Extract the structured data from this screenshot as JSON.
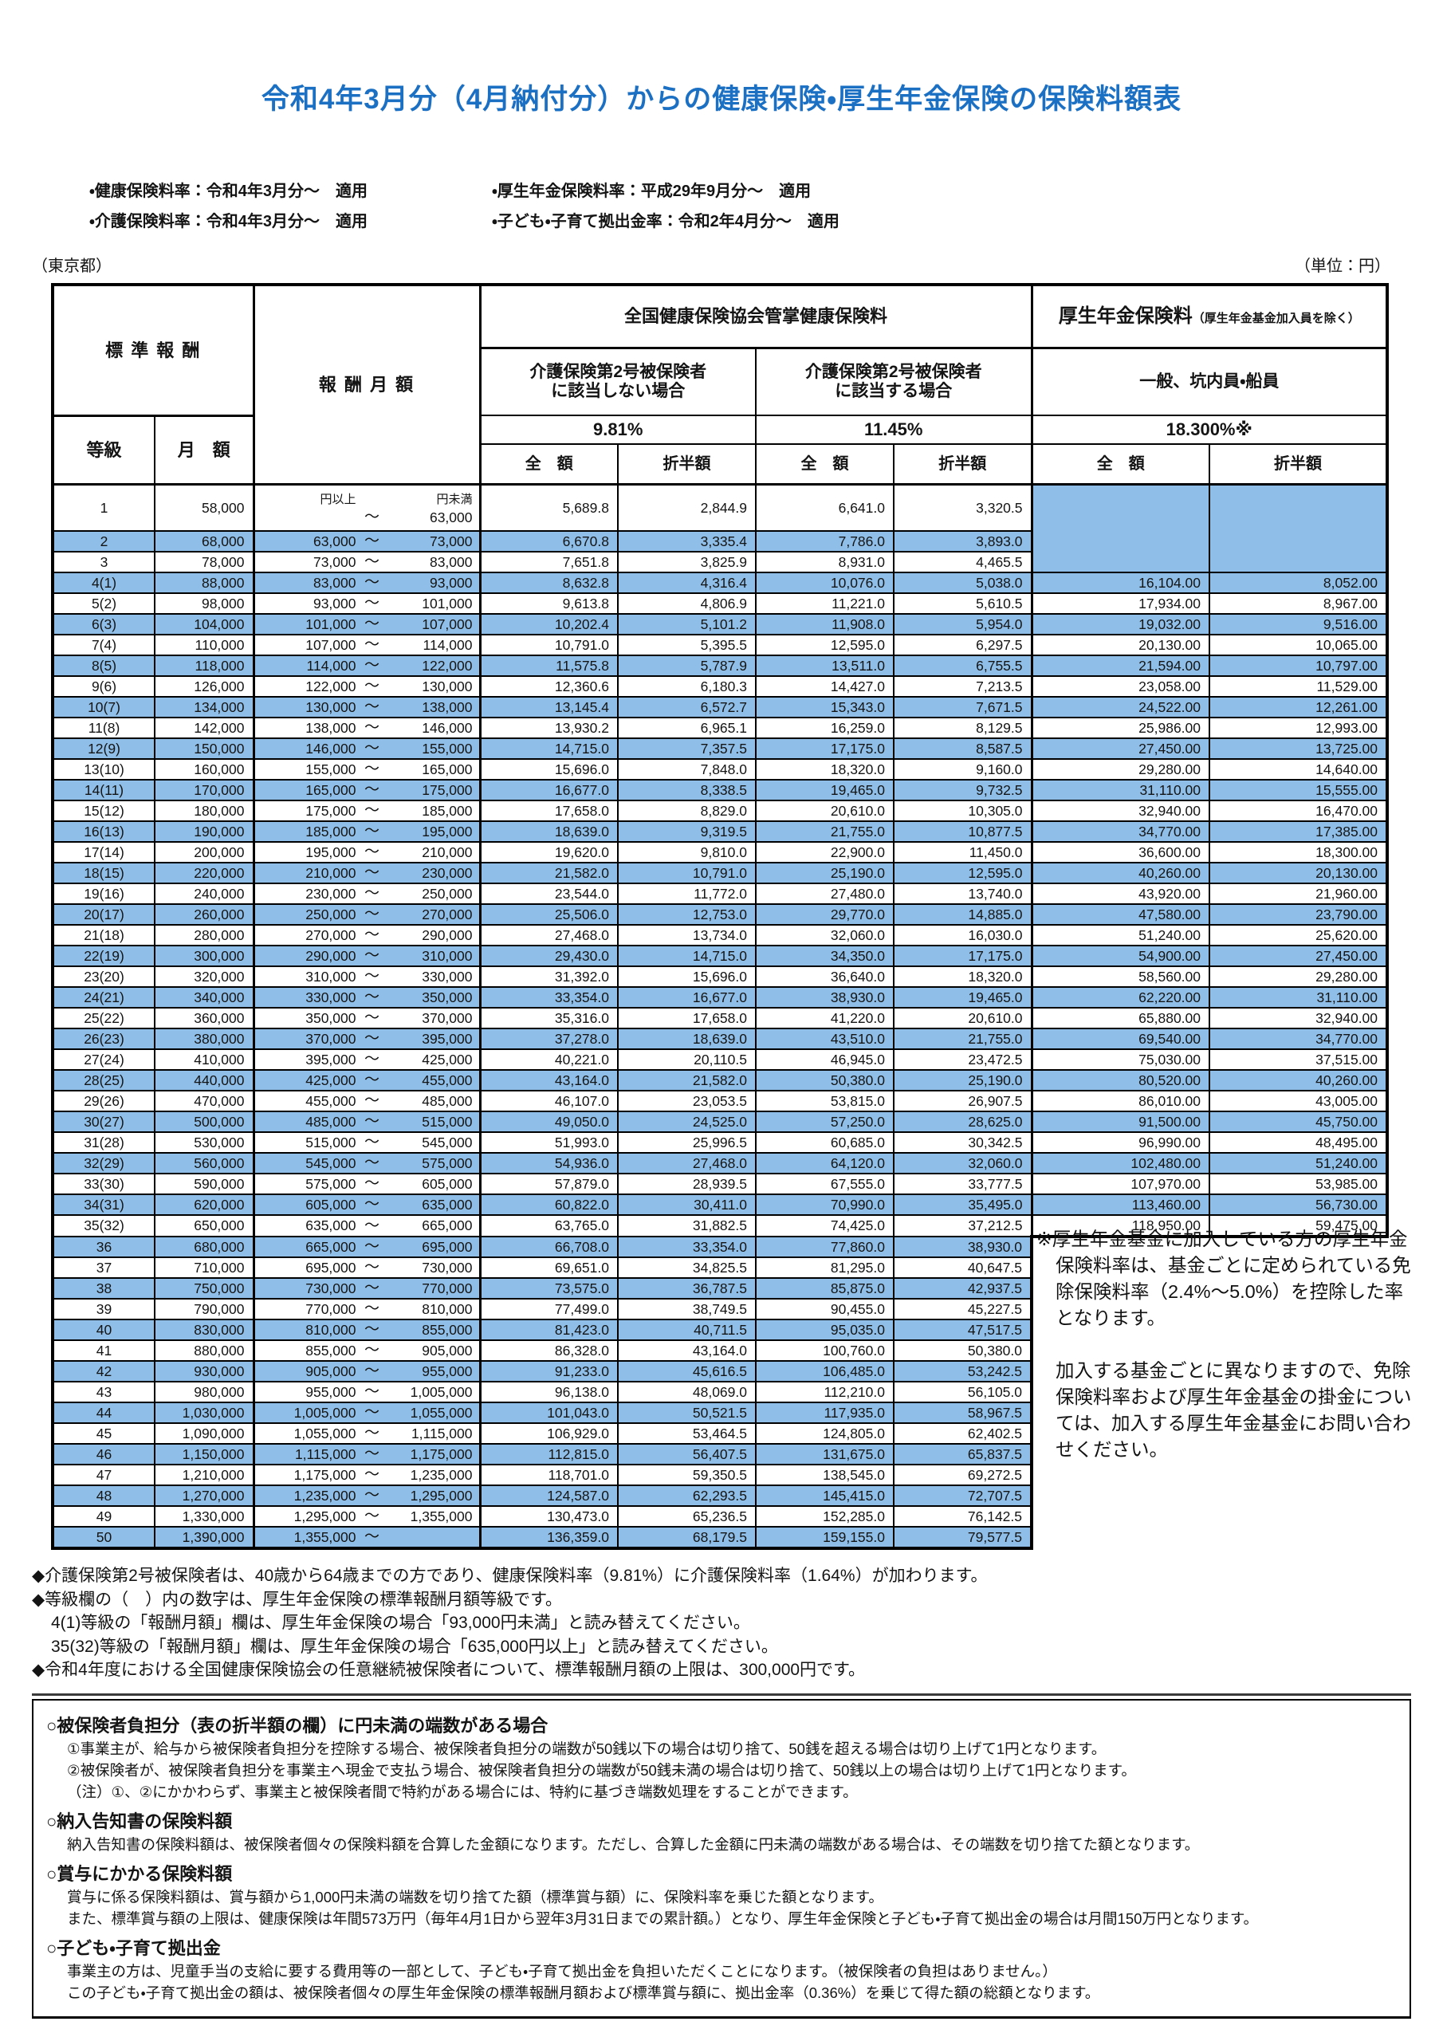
{
  "title": "令和4年3月分（4月納付分）からの健康保険・厚生年金保険の保険料額表",
  "rate_notes": {
    "left": [
      "・健康保険料率：令和4年3月分～　適用",
      "・介護保険料率：令和4年3月分～　適用"
    ],
    "right": [
      "・厚生年金保険料率：平成29年9月分～　適用",
      "・子ども・子育て拠出金率：令和2年4月分～　適用"
    ]
  },
  "region_label": "（東京都）",
  "unit_label": "（単位：円）",
  "colors": {
    "title_blue": "#1b70c4",
    "row_highlight": "#8fbfe8"
  },
  "table": {
    "tilde": "～",
    "header": {
      "standard_remuneration": "標 準 報 酬",
      "grade": "等級",
      "monthly_amount": "月　額",
      "remuneration_monthly": "報 酬 月 額",
      "health_group": "全国健康保険協会管掌健康保険料",
      "care_not_applicable": "介護保険第2号被保険者\nに該当しない場合",
      "care_applicable": "介護保険第2号被保険者\nに該当する場合",
      "pension_group": "厚生年金保険料",
      "pension_group_note": "（厚生年金基金加入員を除く）",
      "pension_sub": "一般、坑内員・船員",
      "rate_health": "9.81%",
      "rate_care": "11.45%",
      "rate_pension": "18.300%※",
      "full": "全　額",
      "half": "折半額",
      "yen_over": "円以上",
      "yen_under": "円未満"
    },
    "rows": [
      [
        "1",
        "58,000",
        "",
        "63,000",
        "5,689.8",
        "2,844.9",
        "6,641.0",
        "3,320.5",
        "",
        ""
      ],
      [
        "2",
        "68,000",
        "63,000",
        "73,000",
        "6,670.8",
        "3,335.4",
        "7,786.0",
        "3,893.0",
        "",
        ""
      ],
      [
        "3",
        "78,000",
        "73,000",
        "83,000",
        "7,651.8",
        "3,825.9",
        "8,931.0",
        "4,465.5",
        "",
        ""
      ],
      [
        "4(1)",
        "88,000",
        "83,000",
        "93,000",
        "8,632.8",
        "4,316.4",
        "10,076.0",
        "5,038.0",
        "16,104.00",
        "8,052.00"
      ],
      [
        "5(2)",
        "98,000",
        "93,000",
        "101,000",
        "9,613.8",
        "4,806.9",
        "11,221.0",
        "5,610.5",
        "17,934.00",
        "8,967.00"
      ],
      [
        "6(3)",
        "104,000",
        "101,000",
        "107,000",
        "10,202.4",
        "5,101.2",
        "11,908.0",
        "5,954.0",
        "19,032.00",
        "9,516.00"
      ],
      [
        "7(4)",
        "110,000",
        "107,000",
        "114,000",
        "10,791.0",
        "5,395.5",
        "12,595.0",
        "6,297.5",
        "20,130.00",
        "10,065.00"
      ],
      [
        "8(5)",
        "118,000",
        "114,000",
        "122,000",
        "11,575.8",
        "5,787.9",
        "13,511.0",
        "6,755.5",
        "21,594.00",
        "10,797.00"
      ],
      [
        "9(6)",
        "126,000",
        "122,000",
        "130,000",
        "12,360.6",
        "6,180.3",
        "14,427.0",
        "7,213.5",
        "23,058.00",
        "11,529.00"
      ],
      [
        "10(7)",
        "134,000",
        "130,000",
        "138,000",
        "13,145.4",
        "6,572.7",
        "15,343.0",
        "7,671.5",
        "24,522.00",
        "12,261.00"
      ],
      [
        "11(8)",
        "142,000",
        "138,000",
        "146,000",
        "13,930.2",
        "6,965.1",
        "16,259.0",
        "8,129.5",
        "25,986.00",
        "12,993.00"
      ],
      [
        "12(9)",
        "150,000",
        "146,000",
        "155,000",
        "14,715.0",
        "7,357.5",
        "17,175.0",
        "8,587.5",
        "27,450.00",
        "13,725.00"
      ],
      [
        "13(10)",
        "160,000",
        "155,000",
        "165,000",
        "15,696.0",
        "7,848.0",
        "18,320.0",
        "9,160.0",
        "29,280.00",
        "14,640.00"
      ],
      [
        "14(11)",
        "170,000",
        "165,000",
        "175,000",
        "16,677.0",
        "8,338.5",
        "19,465.0",
        "9,732.5",
        "31,110.00",
        "15,555.00"
      ],
      [
        "15(12)",
        "180,000",
        "175,000",
        "185,000",
        "17,658.0",
        "8,829.0",
        "20,610.0",
        "10,305.0",
        "32,940.00",
        "16,470.00"
      ],
      [
        "16(13)",
        "190,000",
        "185,000",
        "195,000",
        "18,639.0",
        "9,319.5",
        "21,755.0",
        "10,877.5",
        "34,770.00",
        "17,385.00"
      ],
      [
        "17(14)",
        "200,000",
        "195,000",
        "210,000",
        "19,620.0",
        "9,810.0",
        "22,900.0",
        "11,450.0",
        "36,600.00",
        "18,300.00"
      ],
      [
        "18(15)",
        "220,000",
        "210,000",
        "230,000",
        "21,582.0",
        "10,791.0",
        "25,190.0",
        "12,595.0",
        "40,260.00",
        "20,130.00"
      ],
      [
        "19(16)",
        "240,000",
        "230,000",
        "250,000",
        "23,544.0",
        "11,772.0",
        "27,480.0",
        "13,740.0",
        "43,920.00",
        "21,960.00"
      ],
      [
        "20(17)",
        "260,000",
        "250,000",
        "270,000",
        "25,506.0",
        "12,753.0",
        "29,770.0",
        "14,885.0",
        "47,580.00",
        "23,790.00"
      ],
      [
        "21(18)",
        "280,000",
        "270,000",
        "290,000",
        "27,468.0",
        "13,734.0",
        "32,060.0",
        "16,030.0",
        "51,240.00",
        "25,620.00"
      ],
      [
        "22(19)",
        "300,000",
        "290,000",
        "310,000",
        "29,430.0",
        "14,715.0",
        "34,350.0",
        "17,175.0",
        "54,900.00",
        "27,450.00"
      ],
      [
        "23(20)",
        "320,000",
        "310,000",
        "330,000",
        "31,392.0",
        "15,696.0",
        "36,640.0",
        "18,320.0",
        "58,560.00",
        "29,280.00"
      ],
      [
        "24(21)",
        "340,000",
        "330,000",
        "350,000",
        "33,354.0",
        "16,677.0",
        "38,930.0",
        "19,465.0",
        "62,220.00",
        "31,110.00"
      ],
      [
        "25(22)",
        "360,000",
        "350,000",
        "370,000",
        "35,316.0",
        "17,658.0",
        "41,220.0",
        "20,610.0",
        "65,880.00",
        "32,940.00"
      ],
      [
        "26(23)",
        "380,000",
        "370,000",
        "395,000",
        "37,278.0",
        "18,639.0",
        "43,510.0",
        "21,755.0",
        "69,540.00",
        "34,770.00"
      ],
      [
        "27(24)",
        "410,000",
        "395,000",
        "425,000",
        "40,221.0",
        "20,110.5",
        "46,945.0",
        "23,472.5",
        "75,030.00",
        "37,515.00"
      ],
      [
        "28(25)",
        "440,000",
        "425,000",
        "455,000",
        "43,164.0",
        "21,582.0",
        "50,380.0",
        "25,190.0",
        "80,520.00",
        "40,260.00"
      ],
      [
        "29(26)",
        "470,000",
        "455,000",
        "485,000",
        "46,107.0",
        "23,053.5",
        "53,815.0",
        "26,907.5",
        "86,010.00",
        "43,005.00"
      ],
      [
        "30(27)",
        "500,000",
        "485,000",
        "515,000",
        "49,050.0",
        "24,525.0",
        "57,250.0",
        "28,625.0",
        "91,500.00",
        "45,750.00"
      ],
      [
        "31(28)",
        "530,000",
        "515,000",
        "545,000",
        "51,993.0",
        "25,996.5",
        "60,685.0",
        "30,342.5",
        "96,990.00",
        "48,495.00"
      ],
      [
        "32(29)",
        "560,000",
        "545,000",
        "575,000",
        "54,936.0",
        "27,468.0",
        "64,120.0",
        "32,060.0",
        "102,480.00",
        "51,240.00"
      ],
      [
        "33(30)",
        "590,000",
        "575,000",
        "605,000",
        "57,879.0",
        "28,939.5",
        "67,555.0",
        "33,777.5",
        "107,970.00",
        "53,985.00"
      ],
      [
        "34(31)",
        "620,000",
        "605,000",
        "635,000",
        "60,822.0",
        "30,411.0",
        "70,990.0",
        "35,495.0",
        "113,460.00",
        "56,730.00"
      ],
      [
        "35(32)",
        "650,000",
        "635,000",
        "665,000",
        "63,765.0",
        "31,882.5",
        "74,425.0",
        "37,212.5",
        "118,950.00",
        "59,475.00"
      ],
      [
        "36",
        "680,000",
        "665,000",
        "695,000",
        "66,708.0",
        "33,354.0",
        "77,860.0",
        "38,930.0",
        "",
        ""
      ],
      [
        "37",
        "710,000",
        "695,000",
        "730,000",
        "69,651.0",
        "34,825.5",
        "81,295.0",
        "40,647.5",
        "",
        ""
      ],
      [
        "38",
        "750,000",
        "730,000",
        "770,000",
        "73,575.0",
        "36,787.5",
        "85,875.0",
        "42,937.5",
        "",
        ""
      ],
      [
        "39",
        "790,000",
        "770,000",
        "810,000",
        "77,499.0",
        "38,749.5",
        "90,455.0",
        "45,227.5",
        "",
        ""
      ],
      [
        "40",
        "830,000",
        "810,000",
        "855,000",
        "81,423.0",
        "40,711.5",
        "95,035.0",
        "47,517.5",
        "",
        ""
      ],
      [
        "41",
        "880,000",
        "855,000",
        "905,000",
        "86,328.0",
        "43,164.0",
        "100,760.0",
        "50,380.0",
        "",
        ""
      ],
      [
        "42",
        "930,000",
        "905,000",
        "955,000",
        "91,233.0",
        "45,616.5",
        "106,485.0",
        "53,242.5",
        "",
        ""
      ],
      [
        "43",
        "980,000",
        "955,000",
        "1,005,000",
        "96,138.0",
        "48,069.0",
        "112,210.0",
        "56,105.0",
        "",
        ""
      ],
      [
        "44",
        "1,030,000",
        "1,005,000",
        "1,055,000",
        "101,043.0",
        "50,521.5",
        "117,935.0",
        "58,967.5",
        "",
        ""
      ],
      [
        "45",
        "1,090,000",
        "1,055,000",
        "1,115,000",
        "106,929.0",
        "53,464.5",
        "124,805.0",
        "62,402.5",
        "",
        ""
      ],
      [
        "46",
        "1,150,000",
        "1,115,000",
        "1,175,000",
        "112,815.0",
        "56,407.5",
        "131,675.0",
        "65,837.5",
        "",
        ""
      ],
      [
        "47",
        "1,210,000",
        "1,175,000",
        "1,235,000",
        "118,701.0",
        "59,350.5",
        "138,545.0",
        "69,272.5",
        "",
        ""
      ],
      [
        "48",
        "1,270,000",
        "1,235,000",
        "1,295,000",
        "124,587.0",
        "62,293.5",
        "145,415.0",
        "72,707.5",
        "",
        ""
      ],
      [
        "49",
        "1,330,000",
        "1,295,000",
        "1,355,000",
        "130,473.0",
        "65,236.5",
        "152,285.0",
        "76,142.5",
        "",
        ""
      ],
      [
        "50",
        "1,390,000",
        "1,355,000",
        "",
        "136,359.0",
        "68,179.5",
        "159,155.0",
        "79,577.5",
        "",
        ""
      ]
    ]
  },
  "side_note": {
    "p1": "※厚生年金基金に加入している方の厚生年金保険料率は、基金ごとに定められている免除保険料率（2.4%～5.0%）を控除した率となります。",
    "p2": "加入する基金ごとに異なりますので、免除保険料率および厚生年金基金の掛金については、加入する厚生年金基金にお問い合わせください。"
  },
  "notes": [
    {
      "text": "◆介護保険第2号被保険者は、40歳から64歳までの方であり、健康保険料率（9.81%）に介護保険料率（1.64%）が加わります。"
    },
    {
      "text": "◆等級欄の（　）内の数字は、厚生年金保険の標準報酬月額等級です。"
    },
    {
      "text": "4(1)等級の「報酬月額」欄は、厚生年金保険の場合「93,000円未満」と読み替えてください。"
    },
    {
      "text": "35(32)等級の「報酬月額」欄は、厚生年金保険の場合「635,000円以上」と読み替えてください。"
    },
    {
      "text": "◆令和4年度における全国健康保険協会の任意継続被保険者について、標準報酬月額の上限は、300,000円です。"
    }
  ],
  "box": {
    "sections": [
      {
        "heading": "○被保険者負担分（表の折半額の欄）に円未満の端数がある場合",
        "lines": [
          "①事業主が、給与から被保険者負担分を控除する場合、被保険者負担分の端数が50銭以下の場合は切り捨て、50銭を超える場合は切り上げて1円となります。",
          "②被保険者が、被保険者負担分を事業主へ現金で支払う場合、被保険者負担分の端数が50銭未満の場合は切り捨て、50銭以上の場合は切り上げて1円となります。",
          "（注）①、②にかかわらず、事業主と被保険者間で特約がある場合には、特約に基づき端数処理をすることができます。"
        ]
      },
      {
        "heading": "○納入告知書の保険料額",
        "lines": [
          "納入告知書の保険料額は、被保険者個々の保険料額を合算した金額になります。ただし、合算した金額に円未満の端数がある場合は、その端数を切り捨てた額となります。"
        ]
      },
      {
        "heading": "○賞与にかかる保険料額",
        "lines": [
          "賞与に係る保険料額は、賞与額から1,000円未満の端数を切り捨てた額（標準賞与額）に、保険料率を乗じた額となります。",
          "また、標準賞与額の上限は、健康保険は年間573万円（毎年4月1日から翌年3月31日までの累計額。）となり、厚生年金保険と子ども・子育て拠出金の場合は月間150万円となります。"
        ]
      },
      {
        "heading": "○子ども・子育て拠出金",
        "lines": [
          "事業主の方は、児童手当の支給に要する費用等の一部として、子ども・子育て拠出金を負担いただくことになります。（被保険者の負担はありません。）",
          "この子ども・子育て拠出金の額は、被保険者個々の厚生年金保険の標準報酬月額および標準賞与額に、拠出金率（0.36%）を乗じて得た額の総額となります。"
        ]
      }
    ]
  }
}
